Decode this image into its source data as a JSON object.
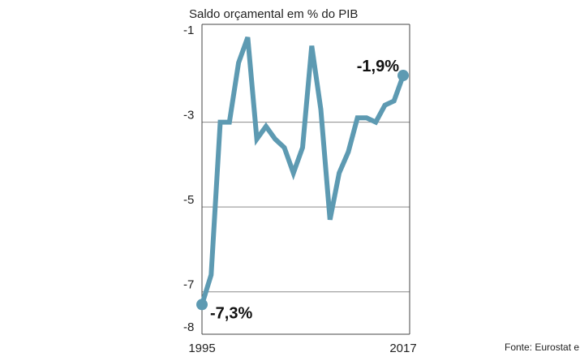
{
  "chart_data": {
    "type": "line",
    "title": "Saldo orçamental em % do PIB",
    "xlabel": "",
    "ylabel": "",
    "x": [
      1995,
      1996,
      1997,
      1998,
      1999,
      2000,
      2001,
      2002,
      2003,
      2004,
      2005,
      2006,
      2007,
      2008,
      2009,
      2010,
      2011,
      2012,
      2013,
      2014,
      2015,
      2016,
      2017
    ],
    "series": [
      {
        "name": "Saldo orçamental",
        "values": [
          -7.3,
          -6.6,
          -3.0,
          -3.0,
          -1.6,
          -1.0,
          -3.4,
          -3.1,
          -3.4,
          -3.6,
          -4.2,
          -3.6,
          -1.2,
          -2.7,
          -5.3,
          -4.2,
          -3.7,
          -2.9,
          -2.9,
          -3.0,
          -2.6,
          -2.5,
          -1.9
        ]
      }
    ],
    "xlim": [
      1995,
      2017
    ],
    "ylim": [
      -8,
      -1
    ],
    "yticks": [
      -1,
      -3,
      -5,
      -7,
      -8
    ],
    "ytick_labels": [
      "-1",
      "-3",
      "-5",
      "-7",
      "-8"
    ],
    "xticks": [
      1995,
      2017
    ],
    "xtick_labels": [
      "1995",
      "2017"
    ],
    "grid": "horizontal",
    "line_color": "#5d9ab2",
    "annotations": [
      {
        "label": "-7,3%",
        "at_index": 0
      },
      {
        "label": "-1,9%",
        "at_index": 22
      }
    ]
  },
  "source": "Fonte: Eurostat e INE"
}
